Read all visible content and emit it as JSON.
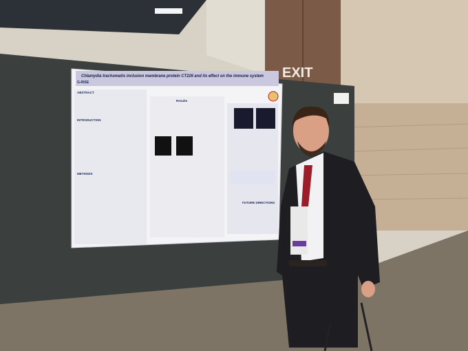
{
  "scene": {
    "exit_sign": "EXIT",
    "poster": {
      "title": "Chlamydia trachomatis inclusion membrane protein CT226 and its effect on the immune system",
      "logo": "G-RISE",
      "sections": [
        "ABSTRACT",
        "INTRODUCTION",
        "METHODS",
        "Results",
        "FUTURE DIRECTIONS"
      ]
    }
  }
}
